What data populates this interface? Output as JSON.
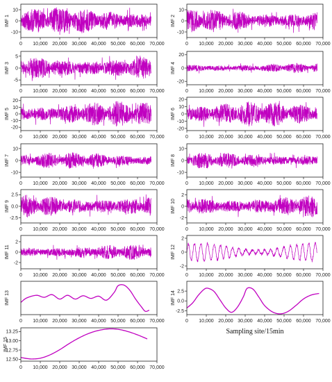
{
  "figure": {
    "xlabel": "Sampling site/15min",
    "line_color": "#c000c0"
  },
  "chart_data": [
    {
      "type": "line",
      "ylabel": "IMF 1",
      "xlim": [
        0,
        70000
      ],
      "ylim": [
        -15,
        15
      ],
      "yticks": [
        -10,
        0,
        10
      ],
      "xticks": [
        0,
        10000,
        20000,
        30000,
        40000,
        50000,
        60000,
        70000
      ],
      "xtick_labels": [
        "0",
        "10,000",
        "20,000",
        "30,000",
        "40,000",
        "50,000",
        "60,000",
        "70,000"
      ],
      "signal": {
        "kind": "noise",
        "amplitude": 13,
        "x_range": [
          0,
          67000
        ]
      }
    },
    {
      "type": "line",
      "ylabel": "IMF 2",
      "xlim": [
        0,
        70000
      ],
      "ylim": [
        -15,
        15
      ],
      "yticks": [
        -10,
        0,
        10
      ],
      "xticks": [
        0,
        10000,
        20000,
        30000,
        40000,
        50000,
        60000,
        70000
      ],
      "xtick_labels": [
        "0",
        "10,000",
        "20,000",
        "30,000",
        "40,000",
        "50,000",
        "60,000",
        "70,000"
      ],
      "signal": {
        "kind": "noise",
        "amplitude": 11,
        "x_range": [
          0,
          67000
        ]
      }
    },
    {
      "type": "line",
      "ylabel": "IMF 3",
      "xlim": [
        0,
        70000
      ],
      "ylim": [
        -7,
        7
      ],
      "yticks": [
        -5,
        0,
        5
      ],
      "xticks": [
        0,
        10000,
        20000,
        30000,
        40000,
        50000,
        60000,
        70000
      ],
      "xtick_labels": [
        "0",
        "10,000",
        "20,000",
        "30,000",
        "40,000",
        "50,000",
        "60,000",
        "70,000"
      ],
      "signal": {
        "kind": "noise",
        "amplitude": 5.5,
        "x_range": [
          0,
          67000
        ]
      }
    },
    {
      "type": "line",
      "ylabel": "IMF 4",
      "xlim": [
        0,
        70000
      ],
      "ylim": [
        -25,
        25
      ],
      "yticks": [
        -20,
        0,
        20
      ],
      "xticks": [
        0,
        10000,
        20000,
        30000,
        40000,
        50000,
        60000,
        70000
      ],
      "xtick_labels": [
        "0",
        "10,000",
        "20,000",
        "30,000",
        "40,000",
        "50,000",
        "60,000",
        "70,000"
      ],
      "signal": {
        "kind": "noise",
        "amplitude": 8,
        "x_range": [
          0,
          67000
        ]
      }
    },
    {
      "type": "line",
      "ylabel": "IMF 5",
      "xlim": [
        0,
        70000
      ],
      "ylim": [
        -25,
        25
      ],
      "yticks": [
        -20,
        -10,
        0,
        10,
        20
      ],
      "xticks": [
        0,
        10000,
        20000,
        30000,
        40000,
        50000,
        60000,
        70000
      ],
      "xtick_labels": [
        "0",
        "10,000",
        "20,000",
        "30,000",
        "40,000",
        "50,000",
        "60,000",
        "70,000"
      ],
      "signal": {
        "kind": "noise",
        "amplitude": 20,
        "x_range": [
          0,
          67000
        ]
      }
    },
    {
      "type": "line",
      "ylabel": "IMF 6",
      "xlim": [
        0,
        70000
      ],
      "ylim": [
        -23,
        23
      ],
      "yticks": [
        -20,
        -10,
        0,
        10,
        20
      ],
      "xticks": [
        0,
        10000,
        20000,
        30000,
        40000,
        50000,
        60000,
        70000
      ],
      "xtick_labels": [
        "0",
        "10,000",
        "20,000",
        "30,000",
        "40,000",
        "50,000",
        "60,000",
        "70,000"
      ],
      "signal": {
        "kind": "noise",
        "amplitude": 18,
        "x_range": [
          0,
          67000
        ]
      }
    },
    {
      "type": "line",
      "ylabel": "IMF 7",
      "xlim": [
        0,
        70000
      ],
      "ylim": [
        -14,
        14
      ],
      "yticks": [
        -10,
        0,
        10
      ],
      "xticks": [
        0,
        10000,
        20000,
        30000,
        40000,
        50000,
        60000,
        70000
      ],
      "xtick_labels": [
        "0",
        "10,000",
        "20,000",
        "30,000",
        "40,000",
        "50,000",
        "60,000",
        "70,000"
      ],
      "signal": {
        "kind": "noise",
        "amplitude": 7,
        "x_range": [
          0,
          67000
        ]
      }
    },
    {
      "type": "line",
      "ylabel": "IMF 8",
      "xlim": [
        0,
        70000
      ],
      "ylim": [
        -14,
        14
      ],
      "yticks": [
        -10,
        0,
        10
      ],
      "xticks": [
        0,
        10000,
        20000,
        30000,
        40000,
        50000,
        60000,
        70000
      ],
      "xtick_labels": [
        "0",
        "10,000",
        "20,000",
        "30,000",
        "40,000",
        "50,000",
        "60,000",
        "70,000"
      ],
      "signal": {
        "kind": "noise",
        "amplitude": 7,
        "x_range": [
          0,
          67000
        ]
      }
    },
    {
      "type": "line",
      "ylabel": "IMF 9",
      "xlim": [
        0,
        70000
      ],
      "ylim": [
        -3.6,
        3.6
      ],
      "yticks": [
        -2.5,
        0.0,
        2.5
      ],
      "ytick_labels": [
        "-2.5",
        "0.0",
        "2.5"
      ],
      "xticks": [
        0,
        10000,
        20000,
        30000,
        40000,
        50000,
        60000,
        70000
      ],
      "xtick_labels": [
        "0",
        "10,000",
        "20,000",
        "30,000",
        "40,000",
        "50,000",
        "60,000",
        "70,000"
      ],
      "signal": {
        "kind": "noise",
        "amplitude": 2.6,
        "x_range": [
          0,
          67000
        ]
      }
    },
    {
      "type": "line",
      "ylabel": "IMF 10",
      "xlim": [
        0,
        70000
      ],
      "ylim": [
        -2.9,
        2.9
      ],
      "yticks": [
        -2,
        0,
        2
      ],
      "xticks": [
        0,
        10000,
        20000,
        30000,
        40000,
        50000,
        60000,
        70000
      ],
      "xtick_labels": [
        "0",
        "10,000",
        "20,000",
        "30,000",
        "40,000",
        "50,000",
        "60,000",
        "70,000"
      ],
      "signal": {
        "kind": "noise",
        "amplitude": 2.0,
        "x_range": [
          0,
          67000
        ]
      }
    },
    {
      "type": "line",
      "ylabel": "IMF 11",
      "xlim": [
        0,
        70000
      ],
      "ylim": [
        -3.2,
        3.2
      ],
      "yticks": [
        -2,
        0,
        2
      ],
      "xticks": [
        0,
        10000,
        20000,
        30000,
        40000,
        50000,
        60000,
        70000
      ],
      "xtick_labels": [
        "0",
        "10,000",
        "20,000",
        "30,000",
        "40,000",
        "50,000",
        "60,000",
        "70,000"
      ],
      "signal": {
        "kind": "noise",
        "amplitude": 1.5,
        "x_range": [
          0,
          67000
        ]
      }
    },
    {
      "type": "line",
      "ylabel": "IMF 12",
      "xlim": [
        0,
        70000
      ],
      "ylim": [
        -2.4,
        2.4
      ],
      "yticks": [
        -2,
        0,
        2
      ],
      "xticks": [
        0,
        10000,
        20000,
        30000,
        40000,
        50000,
        60000,
        70000
      ],
      "xtick_labels": [
        "0",
        "10,000",
        "20,000",
        "30,000",
        "40,000",
        "50,000",
        "60,000",
        "70,000"
      ],
      "signal": {
        "kind": "wave",
        "amplitude": 1.3,
        "x_range": [
          0,
          67000
        ]
      }
    },
    {
      "type": "line",
      "ylabel": "IMF 13",
      "xlim": [
        0,
        70000
      ],
      "ylim": [
        -0.75,
        0.75
      ],
      "yticks": [],
      "xticks": [
        0,
        10000,
        20000,
        30000,
        40000,
        50000,
        60000,
        70000
      ],
      "xtick_labels": [
        "0",
        "10,000",
        "20,000",
        "30,000",
        "40,000",
        "50,000",
        "60,000",
        "70,000"
      ],
      "series": [
        {
          "x": [
            0,
            3000,
            8000,
            12000,
            16000,
            20000,
            24000,
            28000,
            32000,
            36000,
            40000,
            44000,
            48000,
            50000,
            53000,
            56000,
            59000,
            62000,
            64000,
            66000
          ],
          "y": [
            -0.2,
            0.0,
            0.12,
            0.03,
            0.15,
            -0.05,
            0.12,
            -0.05,
            0.1,
            -0.02,
            0.08,
            -0.1,
            0.25,
            0.55,
            0.58,
            0.35,
            -0.05,
            -0.4,
            -0.6,
            -0.55
          ]
        }
      ]
    },
    {
      "type": "line",
      "ylabel": "IMF 14",
      "xlim": [
        0,
        70000
      ],
      "ylim": [
        -3.5,
        5
      ],
      "yticks": [
        -2.5,
        0.0,
        2.5
      ],
      "ytick_labels": [
        "-2.5",
        "0.0",
        "2.5"
      ],
      "xticks": [
        0,
        10000,
        20000,
        30000,
        40000,
        50000,
        60000,
        70000
      ],
      "xtick_labels": [
        "0",
        "10,000",
        "20,000",
        "30,000",
        "40,000",
        "50,000",
        "60,000",
        "70,000"
      ],
      "series": [
        {
          "x": [
            0,
            3000,
            6000,
            9000,
            11000,
            14000,
            17000,
            20000,
            23000,
            26000,
            29000,
            31000,
            34000,
            37000,
            40000,
            44000,
            48000,
            52000,
            56000,
            60000,
            64000,
            68000
          ],
          "y": [
            -1.8,
            -0.5,
            1.5,
            3.0,
            3.2,
            2.4,
            0.3,
            -1.8,
            -2.9,
            -1.6,
            1.0,
            3.2,
            3.0,
            1.0,
            -1.2,
            -2.8,
            -3.3,
            -2.7,
            -1.2,
            0.5,
            1.5,
            1.9
          ]
        }
      ]
    },
    {
      "type": "line",
      "ylabel": "IMF 15",
      "xlim": [
        0,
        70000
      ],
      "ylim": [
        12.45,
        13.35
      ],
      "yticks": [
        12.5,
        12.75,
        13.0,
        13.25
      ],
      "ytick_labels": [
        "12.50",
        "12.75",
        "13.00",
        "13.25"
      ],
      "xticks": [
        0,
        10000,
        20000,
        30000,
        40000,
        50000,
        60000,
        70000
      ],
      "xtick_labels": [
        "0",
        "10,000",
        "20,000",
        "30,000",
        "40,000",
        "50,000",
        "60,000",
        "70,000"
      ],
      "series": [
        {
          "x": [
            0,
            5000,
            10000,
            15000,
            20000,
            25000,
            30000,
            35000,
            40000,
            45000,
            50000,
            55000,
            60000,
            65000
          ],
          "y": [
            12.55,
            12.51,
            12.53,
            12.62,
            12.76,
            12.93,
            13.08,
            13.2,
            13.28,
            13.32,
            13.31,
            13.25,
            13.16,
            13.05
          ]
        }
      ]
    }
  ]
}
